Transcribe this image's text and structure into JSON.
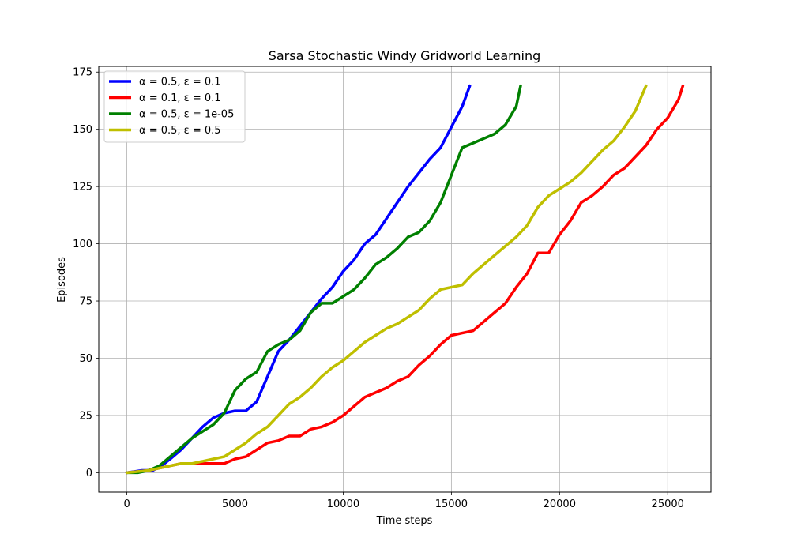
{
  "chart_data": {
    "type": "line",
    "title": "Sarsa Stochastic Windy Gridworld Learning",
    "xlabel": "Time steps",
    "ylabel": "Episodes",
    "xlim": [
      -1300,
      27000
    ],
    "ylim": [
      -8.5,
      177.5
    ],
    "xticks": [
      0,
      5000,
      10000,
      15000,
      20000,
      25000
    ],
    "yticks": [
      0,
      25,
      50,
      75,
      100,
      125,
      150,
      175
    ],
    "grid": true,
    "legend_position": "upper-left",
    "series": [
      {
        "name": "α = 0.5, ε = 0.1",
        "color": "#0000ff",
        "points": [
          [
            0,
            0
          ],
          [
            700,
            1
          ],
          [
            1200,
            1
          ],
          [
            1600,
            3
          ],
          [
            2000,
            6
          ],
          [
            2500,
            10
          ],
          [
            3000,
            15
          ],
          [
            3500,
            20
          ],
          [
            4000,
            24
          ],
          [
            4500,
            26
          ],
          [
            5000,
            27
          ],
          [
            5500,
            27
          ],
          [
            6000,
            31
          ],
          [
            6500,
            42
          ],
          [
            7000,
            53
          ],
          [
            7500,
            58
          ],
          [
            8000,
            64
          ],
          [
            8500,
            70
          ],
          [
            9000,
            76
          ],
          [
            9500,
            81
          ],
          [
            10000,
            88
          ],
          [
            10500,
            93
          ],
          [
            11000,
            100
          ],
          [
            11500,
            104
          ],
          [
            12000,
            111
          ],
          [
            12500,
            118
          ],
          [
            13000,
            125
          ],
          [
            13500,
            131
          ],
          [
            14000,
            137
          ],
          [
            14500,
            142
          ],
          [
            15000,
            151
          ],
          [
            15500,
            160
          ],
          [
            15850,
            169
          ]
        ]
      },
      {
        "name": "α = 0.1, ε = 0.1",
        "color": "#ff0000",
        "points": [
          [
            0,
            0
          ],
          [
            1000,
            1
          ],
          [
            1500,
            2
          ],
          [
            2000,
            3
          ],
          [
            2500,
            4
          ],
          [
            3500,
            4
          ],
          [
            4500,
            4
          ],
          [
            5000,
            6
          ],
          [
            5500,
            7
          ],
          [
            6000,
            10
          ],
          [
            6500,
            13
          ],
          [
            7000,
            14
          ],
          [
            7500,
            16
          ],
          [
            8000,
            16
          ],
          [
            8500,
            19
          ],
          [
            9000,
            20
          ],
          [
            9500,
            22
          ],
          [
            10000,
            25
          ],
          [
            10500,
            29
          ],
          [
            11000,
            33
          ],
          [
            11500,
            35
          ],
          [
            12000,
            37
          ],
          [
            12500,
            40
          ],
          [
            13000,
            42
          ],
          [
            13500,
            47
          ],
          [
            14000,
            51
          ],
          [
            14500,
            56
          ],
          [
            15000,
            60
          ],
          [
            15500,
            61
          ],
          [
            16000,
            62
          ],
          [
            16500,
            66
          ],
          [
            17000,
            70
          ],
          [
            17500,
            74
          ],
          [
            18000,
            81
          ],
          [
            18500,
            87
          ],
          [
            19000,
            96
          ],
          [
            19500,
            96
          ],
          [
            20000,
            104
          ],
          [
            20500,
            110
          ],
          [
            21000,
            118
          ],
          [
            21500,
            121
          ],
          [
            22000,
            125
          ],
          [
            22500,
            130
          ],
          [
            23000,
            133
          ],
          [
            23500,
            138
          ],
          [
            24000,
            143
          ],
          [
            24500,
            150
          ],
          [
            25000,
            155
          ],
          [
            25500,
            163
          ],
          [
            25700,
            169
          ]
        ]
      },
      {
        "name": "α = 0.5, ε = 1e-05",
        "color": "#008000",
        "points": [
          [
            0,
            0
          ],
          [
            500,
            0
          ],
          [
            1000,
            1
          ],
          [
            1500,
            3
          ],
          [
            2000,
            7
          ],
          [
            2500,
            11
          ],
          [
            3000,
            15
          ],
          [
            3500,
            18
          ],
          [
            4000,
            21
          ],
          [
            4500,
            26
          ],
          [
            5000,
            36
          ],
          [
            5500,
            41
          ],
          [
            6000,
            44
          ],
          [
            6500,
            53
          ],
          [
            7000,
            56
          ],
          [
            7500,
            58
          ],
          [
            8000,
            62
          ],
          [
            8500,
            70
          ],
          [
            9000,
            74
          ],
          [
            9500,
            74
          ],
          [
            10000,
            77
          ],
          [
            10500,
            80
          ],
          [
            11000,
            85
          ],
          [
            11500,
            91
          ],
          [
            12000,
            94
          ],
          [
            12500,
            98
          ],
          [
            13000,
            103
          ],
          [
            13500,
            105
          ],
          [
            14000,
            110
          ],
          [
            14500,
            118
          ],
          [
            15000,
            130
          ],
          [
            15500,
            142
          ],
          [
            16000,
            144
          ],
          [
            16500,
            146
          ],
          [
            17000,
            148
          ],
          [
            17500,
            152
          ],
          [
            18000,
            160
          ],
          [
            18200,
            169
          ]
        ]
      },
      {
        "name": "α = 0.5, ε = 0.5",
        "color": "#bfbf00",
        "points": [
          [
            0,
            0
          ],
          [
            1000,
            1
          ],
          [
            1500,
            2
          ],
          [
            2000,
            3
          ],
          [
            2500,
            4
          ],
          [
            3000,
            4
          ],
          [
            3500,
            5
          ],
          [
            4000,
            6
          ],
          [
            4500,
            7
          ],
          [
            5000,
            10
          ],
          [
            5500,
            13
          ],
          [
            6000,
            17
          ],
          [
            6500,
            20
          ],
          [
            7000,
            25
          ],
          [
            7500,
            30
          ],
          [
            8000,
            33
          ],
          [
            8500,
            37
          ],
          [
            9000,
            42
          ],
          [
            9500,
            46
          ],
          [
            10000,
            49
          ],
          [
            10500,
            53
          ],
          [
            11000,
            57
          ],
          [
            11500,
            60
          ],
          [
            12000,
            63
          ],
          [
            12500,
            65
          ],
          [
            13000,
            68
          ],
          [
            13500,
            71
          ],
          [
            14000,
            76
          ],
          [
            14500,
            80
          ],
          [
            15000,
            81
          ],
          [
            15500,
            82
          ],
          [
            16000,
            87
          ],
          [
            16500,
            91
          ],
          [
            17000,
            95
          ],
          [
            17500,
            99
          ],
          [
            18000,
            103
          ],
          [
            18500,
            108
          ],
          [
            19000,
            116
          ],
          [
            19500,
            121
          ],
          [
            20000,
            124
          ],
          [
            20500,
            127
          ],
          [
            21000,
            131
          ],
          [
            21500,
            136
          ],
          [
            22000,
            141
          ],
          [
            22500,
            145
          ],
          [
            23000,
            151
          ],
          [
            23500,
            158
          ],
          [
            24000,
            169
          ]
        ]
      }
    ]
  }
}
